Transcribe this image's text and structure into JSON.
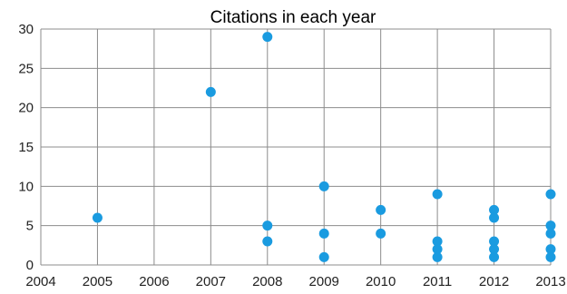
{
  "chart_data": {
    "type": "scatter",
    "title": "Citations in each year",
    "xlabel": "",
    "ylabel": "",
    "xlim": [
      2004,
      2013
    ],
    "ylim": [
      0,
      30
    ],
    "x_ticks": [
      "2004",
      "2005",
      "2006",
      "2007",
      "2008",
      "2009",
      "2010",
      "2011",
      "2012",
      "2013"
    ],
    "y_ticks": [
      "0",
      "5",
      "10",
      "15",
      "20",
      "25",
      "30"
    ],
    "grid": true,
    "legend": "none",
    "marker_color": "#1a9be0",
    "points": [
      {
        "x": 2005,
        "y": 6
      },
      {
        "x": 2007,
        "y": 22
      },
      {
        "x": 2008,
        "y": 29
      },
      {
        "x": 2008,
        "y": 5
      },
      {
        "x": 2008,
        "y": 3
      },
      {
        "x": 2009,
        "y": 10
      },
      {
        "x": 2009,
        "y": 4
      },
      {
        "x": 2009,
        "y": 1
      },
      {
        "x": 2010,
        "y": 7
      },
      {
        "x": 2010,
        "y": 4
      },
      {
        "x": 2011,
        "y": 9
      },
      {
        "x": 2011,
        "y": 3
      },
      {
        "x": 2011,
        "y": 2
      },
      {
        "x": 2011,
        "y": 1
      },
      {
        "x": 2012,
        "y": 7
      },
      {
        "x": 2012,
        "y": 6
      },
      {
        "x": 2012,
        "y": 3
      },
      {
        "x": 2012,
        "y": 2
      },
      {
        "x": 2012,
        "y": 1
      },
      {
        "x": 2013,
        "y": 9
      },
      {
        "x": 2013,
        "y": 5
      },
      {
        "x": 2013,
        "y": 4
      },
      {
        "x": 2013,
        "y": 2
      },
      {
        "x": 2013,
        "y": 1
      }
    ]
  }
}
